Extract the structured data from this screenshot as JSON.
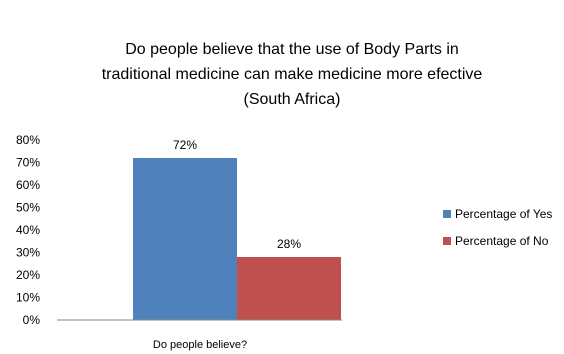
{
  "chart_data": {
    "type": "bar",
    "title_lines": [
      "Do people believe that the use of Body Parts in",
      "traditional medicine can make medicine more efective",
      "(South Africa)"
    ],
    "categories": [
      "Do people believe?"
    ],
    "xlabel": "Do people believe?",
    "ylabel": "",
    "ylim": [
      0,
      80
    ],
    "yticks": [
      "0%",
      "10%",
      "20%",
      "30%",
      "40%",
      "50%",
      "60%",
      "70%",
      "80%"
    ],
    "grid": false,
    "legend_position": "right",
    "series": [
      {
        "name": "Percentage of Yes",
        "values": [
          72
        ],
        "label": "72%",
        "color": "#4F81BD"
      },
      {
        "name": "Percentage of No",
        "values": [
          28
        ],
        "label": "28%",
        "color": "#C0504D"
      }
    ]
  }
}
